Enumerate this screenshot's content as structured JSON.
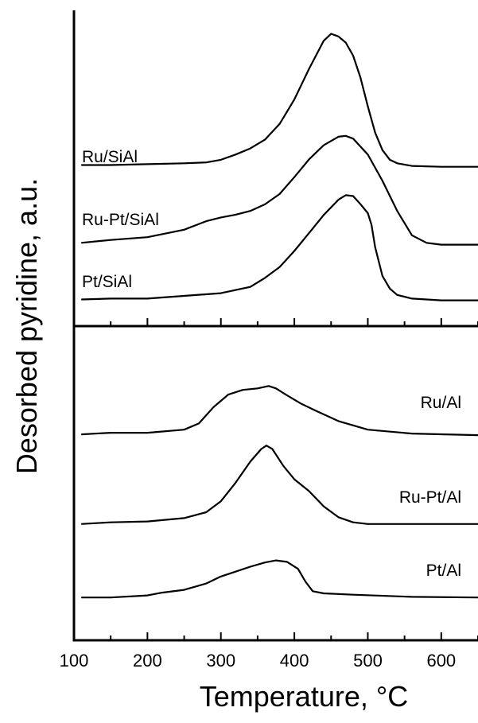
{
  "chart_data": {
    "type": "line",
    "xlabel": "Temperature, °C",
    "ylabel": "Desorbed pyridine, a.u.",
    "x_ticks": [
      "100",
      "200",
      "300",
      "400",
      "500",
      "600"
    ],
    "xlim": [
      100,
      650
    ],
    "grid": false,
    "panels": [
      {
        "name": "top",
        "series": [
          {
            "name": "Ru/SiAl",
            "x": [
              110,
              150,
              200,
              250,
              280,
              300,
              320,
              340,
              360,
              380,
              400,
              420,
              440,
              450,
              460,
              470,
              480,
              490,
              500,
              510,
              520,
              530,
              540,
              560,
              600,
              650
            ],
            "y": [
              0.05,
              0.05,
              0.06,
              0.07,
              0.08,
              0.11,
              0.17,
              0.24,
              0.34,
              0.52,
              0.8,
              1.15,
              1.47,
              1.55,
              1.52,
              1.45,
              1.3,
              1.05,
              0.72,
              0.42,
              0.22,
              0.11,
              0.07,
              0.04,
              0.03,
              0.03
            ]
          },
          {
            "name": "Ru-Pt/SiAl",
            "x": [
              110,
              150,
              200,
              250,
              280,
              300,
              320,
              340,
              360,
              380,
              400,
              420,
              440,
              460,
              470,
              480,
              500,
              520,
              540,
              560,
              580,
              600,
              650
            ],
            "y": [
              0.04,
              0.07,
              0.1,
              0.18,
              0.27,
              0.31,
              0.34,
              0.38,
              0.45,
              0.56,
              0.74,
              0.93,
              1.08,
              1.17,
              1.18,
              1.15,
              0.98,
              0.7,
              0.38,
              0.12,
              0.04,
              0.02,
              0.02
            ]
          },
          {
            "name": "Pt/SiAl",
            "x": [
              110,
              150,
              200,
              250,
              300,
              340,
              360,
              380,
              400,
              420,
              440,
              460,
              470,
              480,
              490,
              500,
              505,
              510,
              520,
              530,
              540,
              560,
              600,
              650
            ],
            "y": [
              0.04,
              0.05,
              0.05,
              0.08,
              0.11,
              0.18,
              0.28,
              0.4,
              0.58,
              0.78,
              0.98,
              1.15,
              1.2,
              1.19,
              1.1,
              1.0,
              0.87,
              0.62,
              0.3,
              0.16,
              0.09,
              0.05,
              0.03,
              0.03
            ]
          }
        ]
      },
      {
        "name": "bottom",
        "series": [
          {
            "name": "Ru/Al",
            "x": [
              110,
              150,
              200,
              250,
              270,
              290,
              310,
              330,
              350,
              365,
              375,
              390,
              410,
              430,
              460,
              500,
              560,
              650
            ],
            "y": [
              0.04,
              0.06,
              0.06,
              0.1,
              0.18,
              0.39,
              0.55,
              0.61,
              0.63,
              0.66,
              0.63,
              0.54,
              0.43,
              0.34,
              0.21,
              0.1,
              0.05,
              0.03
            ]
          },
          {
            "name": "Ru-Pt/Al",
            "x": [
              110,
              150,
              200,
              250,
              280,
              300,
              320,
              340,
              355,
              362,
              370,
              385,
              400,
              420,
              440,
              460,
              480,
              500,
              560,
              650
            ],
            "y": [
              0.03,
              0.05,
              0.06,
              0.1,
              0.17,
              0.3,
              0.52,
              0.77,
              0.92,
              0.96,
              0.92,
              0.72,
              0.56,
              0.42,
              0.24,
              0.11,
              0.05,
              0.03,
              0.03,
              0.03
            ]
          },
          {
            "name": "Pt/Al",
            "x": [
              110,
              150,
              200,
              220,
              250,
              280,
              300,
              320,
              340,
              360,
              375,
              390,
              405,
              415,
              425,
              440,
              480,
              560,
              650
            ],
            "y": [
              0.02,
              0.02,
              0.05,
              0.09,
              0.13,
              0.22,
              0.32,
              0.39,
              0.46,
              0.52,
              0.55,
              0.53,
              0.43,
              0.25,
              0.11,
              0.08,
              0.06,
              0.03,
              0.02
            ]
          }
        ]
      }
    ]
  }
}
